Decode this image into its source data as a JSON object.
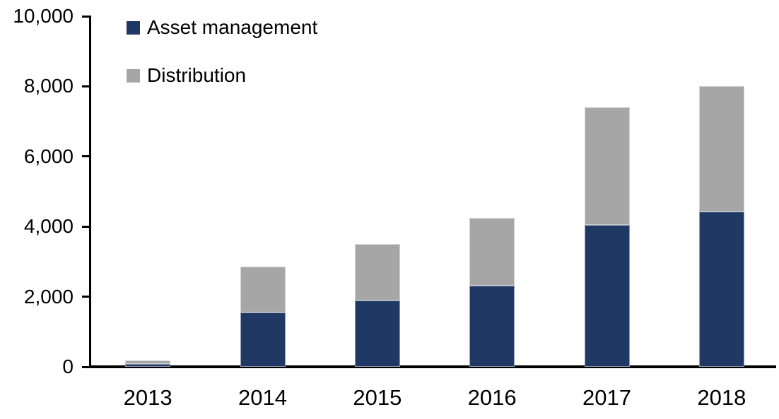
{
  "chart_data": {
    "type": "bar",
    "stacked": true,
    "title": "",
    "xlabel": "",
    "ylabel": "",
    "categories": [
      "2013",
      "2014",
      "2015",
      "2016",
      "2017",
      "2018"
    ],
    "series": [
      {
        "name": "Asset management",
        "color": "#1f3864",
        "values": [
          90,
          1550,
          1900,
          2320,
          4050,
          4420
        ]
      },
      {
        "name": "Distribution",
        "color": "#a6a6a6",
        "values": [
          100,
          1300,
          1600,
          1930,
          3350,
          3580
        ]
      }
    ],
    "stack_totals": [
      190,
      2850,
      3500,
      4250,
      7400,
      8000
    ],
    "ylim": [
      0,
      10000
    ],
    "yticks": [
      0,
      2000,
      4000,
      6000,
      8000,
      10000
    ],
    "ytick_labels": [
      "0",
      "2,000",
      "4,000",
      "6,000",
      "8,000",
      "10,000"
    ],
    "grid": false,
    "legend_position": "top-left",
    "axis_color": "#000000",
    "text_color": "#000000",
    "background_color": "#ffffff"
  }
}
